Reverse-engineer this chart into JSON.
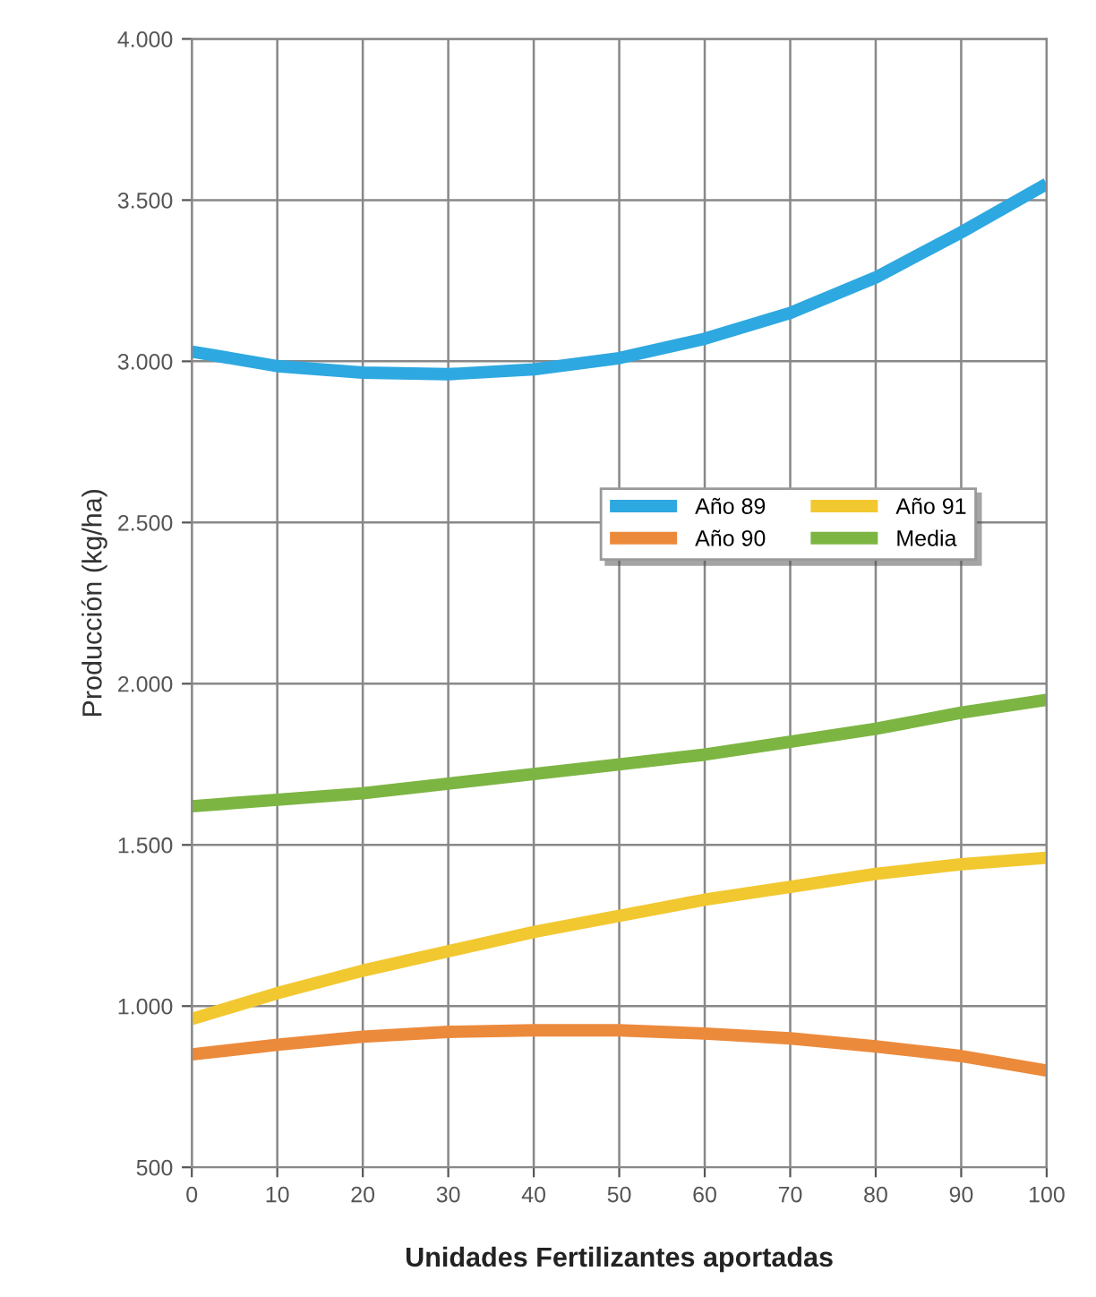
{
  "chart_data": {
    "type": "line",
    "xlabel": "Unidades Fertilizantes aportadas",
    "ylabel": "Producción (kg/ha)",
    "x": [
      0,
      10,
      20,
      30,
      40,
      50,
      60,
      70,
      80,
      90,
      100
    ],
    "series": [
      {
        "name": "Año 89",
        "color": "#2ea8e0",
        "values": [
          3030,
          2985,
          2965,
          2960,
          2975,
          3010,
          3070,
          3150,
          3260,
          3400,
          3550
        ]
      },
      {
        "name": "Año 90",
        "color": "#ec8a3c",
        "values": [
          850,
          880,
          905,
          920,
          925,
          925,
          915,
          900,
          875,
          845,
          800
        ]
      },
      {
        "name": "Año 91",
        "color": "#f2c830",
        "values": [
          960,
          1040,
          1110,
          1170,
          1230,
          1280,
          1330,
          1370,
          1410,
          1440,
          1460
        ]
      },
      {
        "name": "Media",
        "color": "#7db543",
        "values": [
          1620,
          1640,
          1660,
          1690,
          1720,
          1750,
          1780,
          1820,
          1860,
          1910,
          1950
        ]
      }
    ],
    "xlim": [
      0,
      100
    ],
    "xticks": [
      0,
      10,
      20,
      30,
      40,
      50,
      60,
      70,
      80,
      90,
      100
    ],
    "ylim": [
      500,
      4000
    ],
    "yticks": [
      {
        "value": 500,
        "label": "500"
      },
      {
        "value": 1000,
        "label": "1.000"
      },
      {
        "value": 1500,
        "label": "1.500"
      },
      {
        "value": 2000,
        "label": "2.000"
      },
      {
        "value": 2500,
        "label": "2.500"
      },
      {
        "value": 3000,
        "label": "3.000"
      },
      {
        "value": 3500,
        "label": "3.500"
      },
      {
        "value": 4000,
        "label": "4.000"
      }
    ],
    "grid": true,
    "legend": "center right",
    "marker": "none",
    "line_style": "solid"
  }
}
